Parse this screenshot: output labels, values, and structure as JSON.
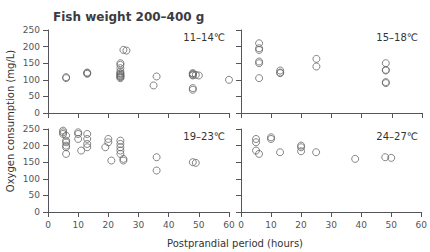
{
  "chart_data": [
    {
      "type": "scatter",
      "title": "Fish weight 200–400 g",
      "xlabel": "Postprandial period (hours)",
      "ylabel": "Oxygen consumption (mg/L)",
      "annotation": "11–14℃",
      "x": [
        6,
        6,
        13,
        13,
        13,
        24,
        24,
        24,
        24,
        24,
        24,
        24,
        24,
        24,
        24,
        24,
        25,
        26,
        35,
        36,
        48,
        48,
        48,
        48,
        48,
        48,
        49,
        50,
        60
      ],
      "values": [
        108,
        105,
        122,
        118,
        120,
        150,
        145,
        135,
        125,
        120,
        118,
        115,
        112,
        110,
        108,
        105,
        190,
        188,
        83,
        110,
        120,
        118,
        115,
        113,
        75,
        70,
        115,
        113,
        100
      ],
      "xlim": [
        0,
        60
      ],
      "ylim": [
        0,
        250
      ],
      "xticks": [
        0,
        10,
        20,
        30,
        40,
        50,
        60
      ],
      "yticks": [
        0,
        50,
        100,
        150,
        200,
        250
      ],
      "marker": "circle",
      "color": "#666666",
      "grid": false,
      "tick_labels": "y"
    },
    {
      "type": "scatter",
      "annotation": "15–18℃",
      "x": [
        6,
        6,
        6,
        6,
        6,
        6,
        13,
        13,
        13,
        25,
        25,
        48,
        48,
        48,
        48,
        48
      ],
      "values": [
        210,
        195,
        190,
        155,
        150,
        105,
        128,
        122,
        120,
        163,
        140,
        150,
        130,
        128,
        93,
        90
      ],
      "xlim": [
        0,
        60
      ],
      "ylim": [
        0,
        250
      ],
      "xticks": [
        0,
        10,
        20,
        30,
        40,
        50,
        60
      ],
      "yticks": [
        0,
        50,
        100,
        150,
        200,
        250
      ],
      "marker": "circle",
      "color": "#666666",
      "grid": false,
      "tick_labels": false
    },
    {
      "type": "scatter",
      "annotation": "19–23℃",
      "x": [
        5,
        5,
        5,
        6,
        6,
        6,
        6,
        6,
        6,
        10,
        10,
        10,
        11,
        13,
        13,
        13,
        13,
        19,
        20,
        20,
        21,
        24,
        24,
        24,
        24,
        24,
        25,
        25,
        36,
        36,
        48,
        49
      ],
      "values": [
        245,
        240,
        235,
        230,
        215,
        210,
        200,
        195,
        175,
        240,
        235,
        220,
        185,
        235,
        220,
        205,
        195,
        195,
        220,
        210,
        155,
        215,
        205,
        195,
        185,
        175,
        160,
        155,
        165,
        125,
        150,
        148
      ],
      "xlim": [
        0,
        60
      ],
      "ylim": [
        0,
        250
      ],
      "xticks": [
        0,
        10,
        20,
        30,
        40,
        50,
        60
      ],
      "yticks": [
        0,
        50,
        100,
        150,
        200,
        250
      ],
      "marker": "circle",
      "color": "#666666",
      "grid": false
    },
    {
      "type": "scatter",
      "annotation": "24–27℃",
      "x": [
        5,
        5,
        5,
        6,
        10,
        10,
        13,
        20,
        20,
        20,
        25,
        38,
        48,
        50
      ],
      "values": [
        220,
        210,
        185,
        175,
        225,
        220,
        180,
        200,
        195,
        183,
        180,
        160,
        165,
        163
      ],
      "xlim": [
        0,
        60
      ],
      "ylim": [
        0,
        250
      ],
      "xticks": [
        0,
        10,
        20,
        30,
        40,
        50,
        60
      ],
      "yticks": [
        0,
        50,
        100,
        150,
        200,
        250
      ],
      "marker": "circle",
      "color": "#666666",
      "grid": false,
      "tick_labels": "x"
    }
  ]
}
